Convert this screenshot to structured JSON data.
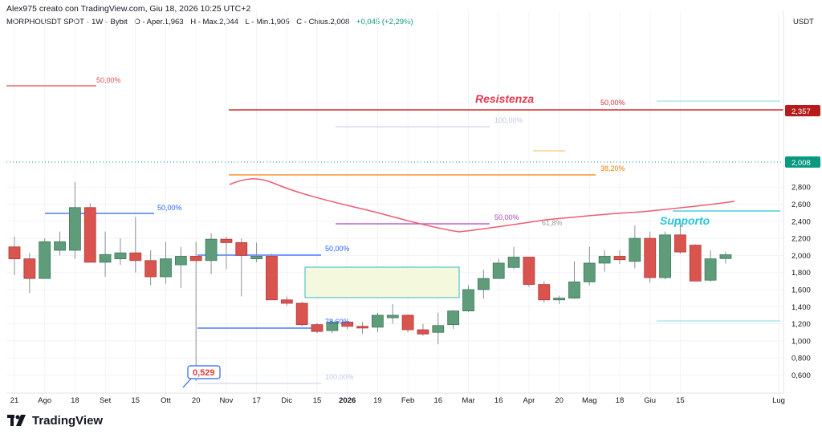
{
  "header": {
    "author_line": "Alex975 creato con TradingView.com, Giu 18, 2026 10:25 UTC+2"
  },
  "symbol": {
    "name": "MORPHOUSDT SPOT",
    "interval": "1W",
    "exchange": "Bybit",
    "open": "O - Aper.1,963",
    "high": "H - Max.2,044",
    "low": "L - Min.1,905",
    "close": "C - Chius.2,008",
    "change": "+0,045 (+2,29%)"
  },
  "price_axis": {
    "currency": "USDT",
    "ticks": [
      "2,800",
      "2,600",
      "2,400",
      "2,200",
      "2,000",
      "1,800",
      "1,600",
      "1,400",
      "1,200",
      "1,000",
      "0,800",
      "0,600"
    ],
    "current_price_label": "2,008",
    "resistance_price_label": "2,357"
  },
  "time_axis": {
    "labels": [
      "21",
      "Ago",
      "18",
      "Set",
      "15",
      "Ott",
      "20",
      "Nov",
      "17",
      "Dic",
      "15",
      "2026",
      "19",
      "Feb",
      "16",
      "Mar",
      "16",
      "Apr",
      "20",
      "Mag",
      "18",
      "Giu",
      "15",
      "Lug"
    ]
  },
  "annotations": {
    "resistance": "Resistenza",
    "support": "Supporto",
    "low_callout": "0,529",
    "fib_labels": {
      "f1": "50,00%",
      "f2": "50,00%",
      "f3": "100,00%",
      "f4": "38,20%",
      "f5": "50,00%",
      "f6": "50,00%",
      "f7": "78,60%",
      "f8": "100,00%",
      "f9": "50,00%",
      "f10": "61,8%"
    }
  },
  "chart_data": {
    "type": "candlestick",
    "title": "MORPHOUSDT SPOT · 1W · Bybit",
    "y_unit": "USDT",
    "ylim": [
      0.5,
      2.92
    ],
    "candles": [
      {
        "o": 2.1,
        "h": 2.22,
        "l": 1.77,
        "c": 1.96
      },
      {
        "o": 1.96,
        "h": 2.03,
        "l": 1.56,
        "c": 1.73
      },
      {
        "o": 1.73,
        "h": 2.2,
        "l": 1.73,
        "c": 2.16
      },
      {
        "o": 2.06,
        "h": 2.28,
        "l": 2.0,
        "c": 2.16
      },
      {
        "o": 2.06,
        "h": 2.86,
        "l": 1.96,
        "c": 2.56
      },
      {
        "o": 2.56,
        "h": 2.61,
        "l": 1.92,
        "c": 1.92
      },
      {
        "o": 1.92,
        "h": 2.28,
        "l": 1.75,
        "c": 2.01
      },
      {
        "o": 1.96,
        "h": 2.2,
        "l": 1.89,
        "c": 2.03
      },
      {
        "o": 2.03,
        "h": 2.45,
        "l": 1.8,
        "c": 1.94
      },
      {
        "o": 1.94,
        "h": 2.06,
        "l": 1.65,
        "c": 1.75
      },
      {
        "o": 1.75,
        "h": 2.16,
        "l": 1.67,
        "c": 1.96
      },
      {
        "o": 1.89,
        "h": 2.1,
        "l": 1.62,
        "c": 1.99
      },
      {
        "o": 1.99,
        "h": 2.16,
        "l": 0.529,
        "c": 1.94
      },
      {
        "o": 1.94,
        "h": 2.26,
        "l": 1.78,
        "c": 2.19
      },
      {
        "o": 2.19,
        "h": 2.22,
        "l": 1.84,
        "c": 2.15
      },
      {
        "o": 2.15,
        "h": 2.2,
        "l": 1.52,
        "c": 2.0
      },
      {
        "o": 1.96,
        "h": 2.15,
        "l": 1.92,
        "c": 1.99
      },
      {
        "o": 1.99,
        "h": 2.02,
        "l": 1.48,
        "c": 1.48
      },
      {
        "o": 1.48,
        "h": 1.52,
        "l": 1.41,
        "c": 1.44
      },
      {
        "o": 1.44,
        "h": 1.46,
        "l": 1.17,
        "c": 1.19
      },
      {
        "o": 1.19,
        "h": 1.21,
        "l": 1.09,
        "c": 1.11
      },
      {
        "o": 1.12,
        "h": 1.25,
        "l": 1.09,
        "c": 1.22
      },
      {
        "o": 1.22,
        "h": 1.23,
        "l": 1.14,
        "c": 1.17
      },
      {
        "o": 1.17,
        "h": 1.22,
        "l": 1.08,
        "c": 1.15
      },
      {
        "o": 1.16,
        "h": 1.33,
        "l": 1.1,
        "c": 1.3
      },
      {
        "o": 1.27,
        "h": 1.43,
        "l": 1.2,
        "c": 1.3
      },
      {
        "o": 1.3,
        "h": 1.31,
        "l": 1.1,
        "c": 1.13
      },
      {
        "o": 1.13,
        "h": 1.2,
        "l": 1.06,
        "c": 1.08
      },
      {
        "o": 1.1,
        "h": 1.33,
        "l": 0.96,
        "c": 1.18
      },
      {
        "o": 1.19,
        "h": 1.36,
        "l": 1.14,
        "c": 1.35
      },
      {
        "o": 1.35,
        "h": 1.65,
        "l": 1.34,
        "c": 1.6
      },
      {
        "o": 1.6,
        "h": 1.83,
        "l": 1.49,
        "c": 1.73
      },
      {
        "o": 1.73,
        "h": 1.96,
        "l": 1.73,
        "c": 1.91
      },
      {
        "o": 1.86,
        "h": 2.1,
        "l": 1.84,
        "c": 1.98
      },
      {
        "o": 1.98,
        "h": 1.98,
        "l": 1.63,
        "c": 1.66
      },
      {
        "o": 1.66,
        "h": 1.7,
        "l": 1.45,
        "c": 1.48
      },
      {
        "o": 1.48,
        "h": 1.53,
        "l": 1.43,
        "c": 1.5
      },
      {
        "o": 1.5,
        "h": 1.93,
        "l": 1.49,
        "c": 1.69
      },
      {
        "o": 1.69,
        "h": 2.1,
        "l": 1.65,
        "c": 1.91
      },
      {
        "o": 1.91,
        "h": 2.06,
        "l": 1.81,
        "c": 1.99
      },
      {
        "o": 1.99,
        "h": 2.06,
        "l": 1.9,
        "c": 1.95
      },
      {
        "o": 1.93,
        "h": 2.35,
        "l": 1.85,
        "c": 2.2
      },
      {
        "o": 2.2,
        "h": 2.28,
        "l": 1.68,
        "c": 1.74
      },
      {
        "o": 1.74,
        "h": 2.28,
        "l": 1.72,
        "c": 2.24
      },
      {
        "o": 2.24,
        "h": 2.4,
        "l": 2.02,
        "c": 2.04
      },
      {
        "o": 2.12,
        "h": 2.13,
        "l": 1.7,
        "c": 1.7
      },
      {
        "o": 1.71,
        "h": 2.06,
        "l": 1.69,
        "c": 1.96
      },
      {
        "o": 1.963,
        "h": 2.044,
        "l": 1.905,
        "c": 2.008
      }
    ]
  }
}
